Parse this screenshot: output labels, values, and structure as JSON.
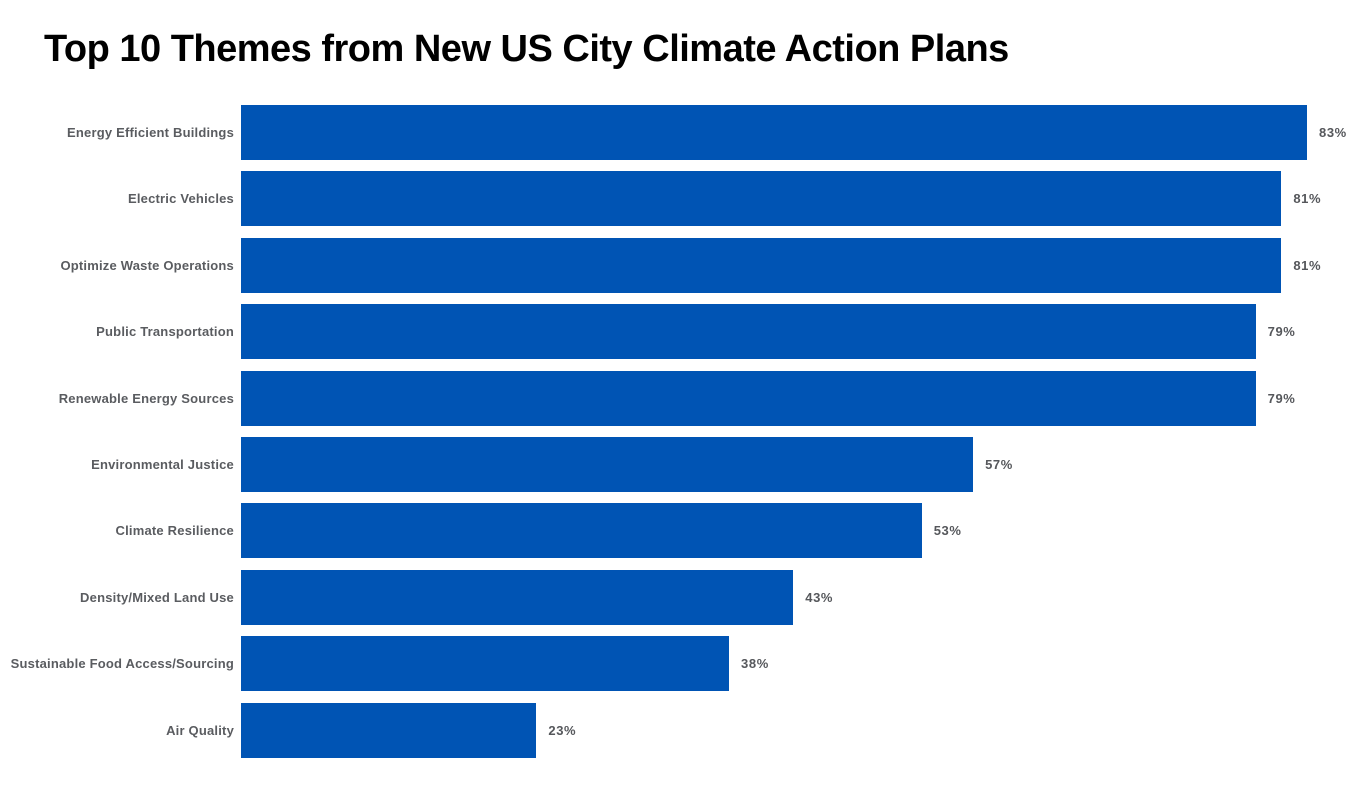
{
  "title": "Top 10 Themes from New US City Climate Action Plans",
  "colors": {
    "bar": "#0054b4",
    "category_label": "#5a5c60",
    "value_label": "#55575b",
    "title": "#000000",
    "background": "#ffffff"
  },
  "chart_data": {
    "type": "bar",
    "orientation": "horizontal",
    "title": "Top 10 Themes from New US City Climate Action Plans",
    "xlabel": "",
    "ylabel": "",
    "unit": "%",
    "axis_max": 83,
    "grid": false,
    "legend": false,
    "value_labels_position": "right-of-bar",
    "categories": [
      "Energy Efficient Buildings",
      "Electric Vehicles",
      "Optimize Waste Operations",
      "Public Transportation",
      "Renewable Energy Sources",
      "Environmental Justice",
      "Climate Resilience",
      "Density/Mixed Land Use",
      "Sustainable Food Access/Sourcing",
      "Air Quality"
    ],
    "values": [
      83,
      81,
      81,
      79,
      79,
      57,
      53,
      43,
      38,
      23
    ],
    "value_labels": [
      "83%",
      "81%",
      "81%",
      "79%",
      "79%",
      "57%",
      "53%",
      "43%",
      "38%",
      "23%"
    ]
  }
}
